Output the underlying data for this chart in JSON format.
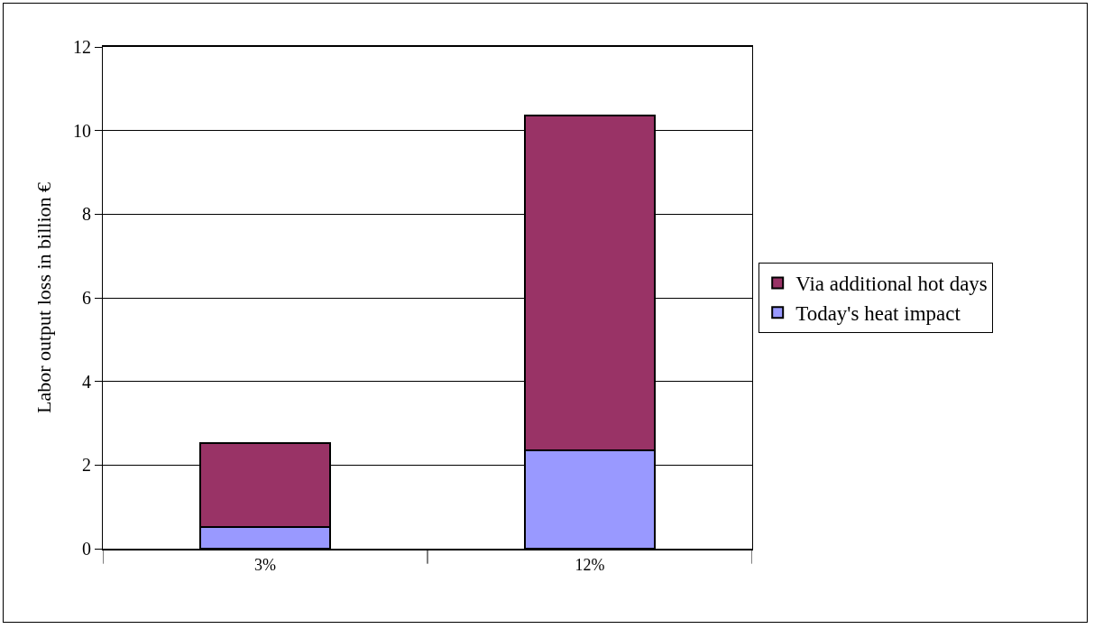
{
  "chart_data": {
    "type": "bar",
    "stacked": true,
    "ylabel": "Labor output loss in billion €",
    "categories": [
      "3%",
      "12%"
    ],
    "series": [
      {
        "name": "Today's heat impact",
        "color": "#9999ff",
        "values": [
          0.52,
          2.35
        ]
      },
      {
        "name": "Via additional hot days",
        "color": "#993366",
        "values": [
          2.0,
          8.0
        ]
      }
    ],
    "ylim": [
      0,
      12
    ],
    "yticks": [
      0,
      2,
      4,
      6,
      8,
      10,
      12
    ],
    "grid": "y",
    "legend": "right"
  }
}
